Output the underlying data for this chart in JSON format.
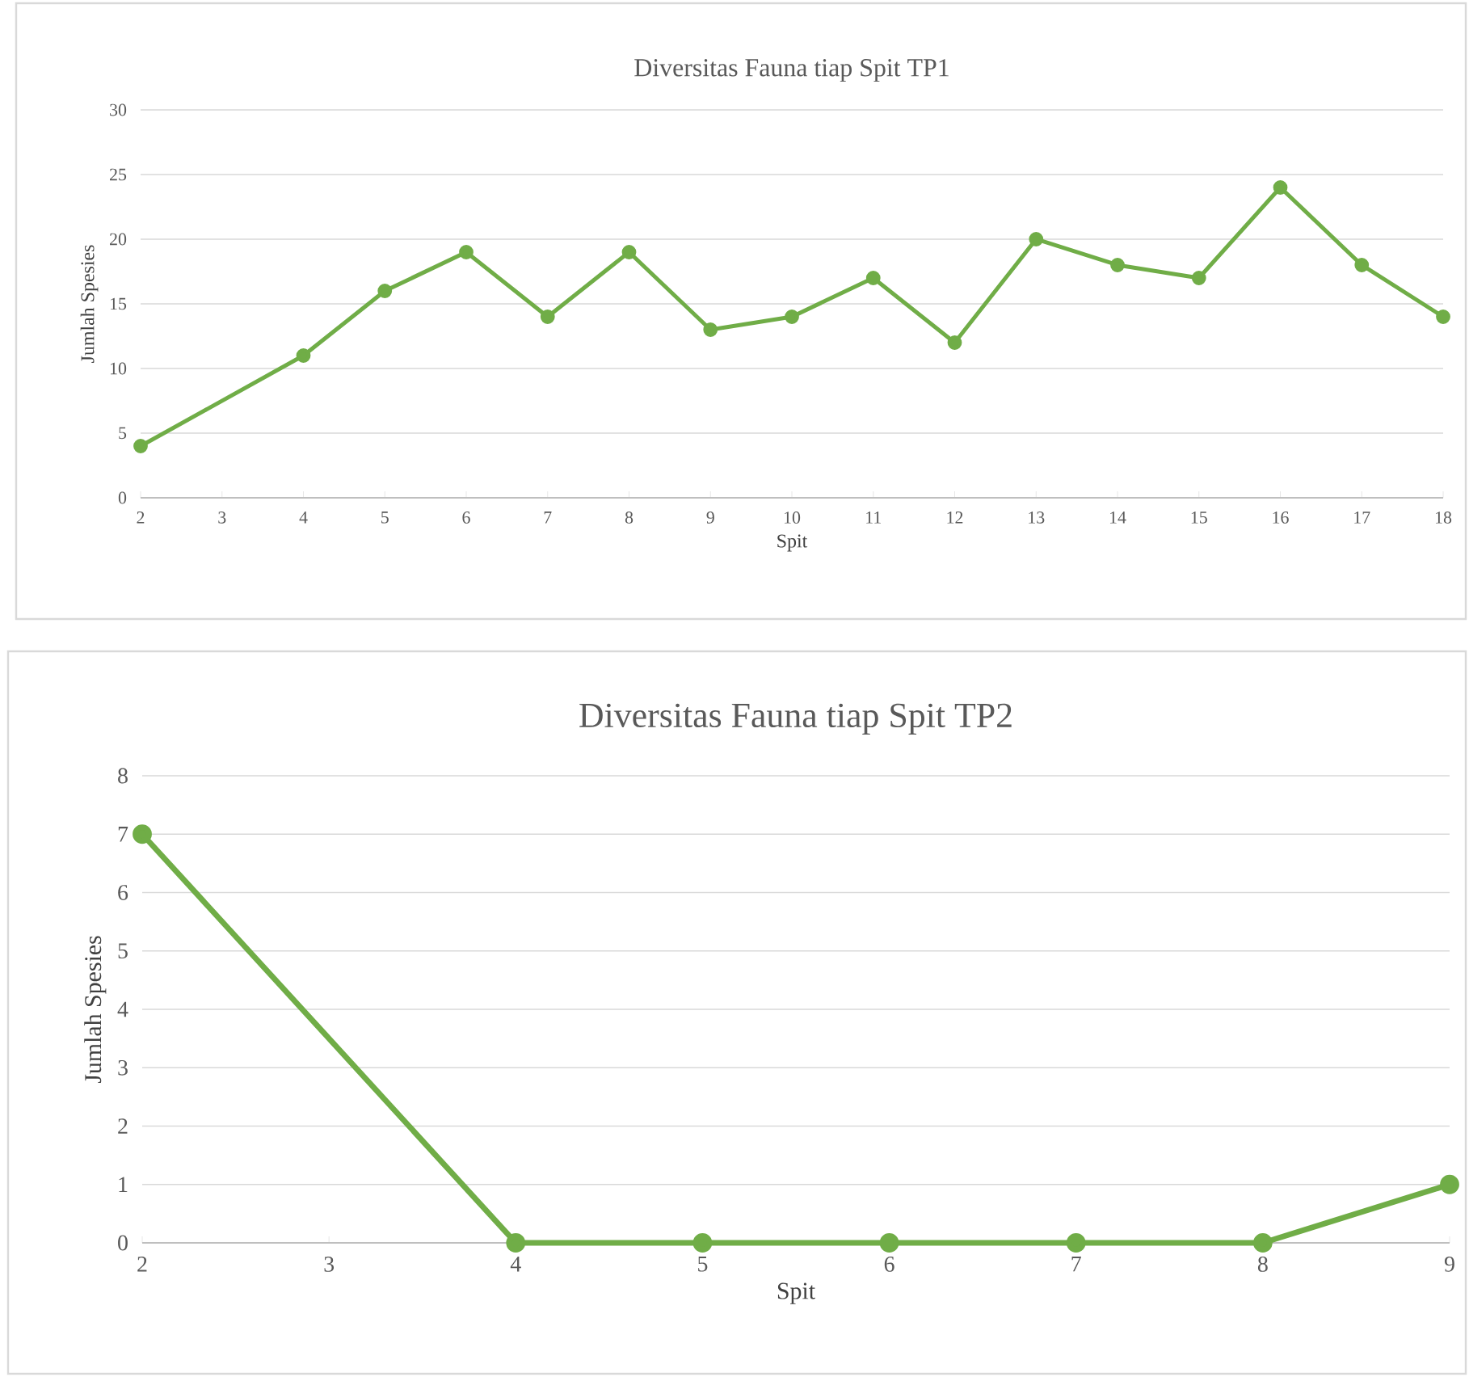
{
  "chart_data": [
    {
      "type": "line",
      "title": "Diversitas Fauna tiap Spit TP1",
      "xlabel": "Spit",
      "ylabel": "Jumlah Spesies",
      "categories": [
        "2",
        "3",
        "4",
        "5",
        "6",
        "7",
        "8",
        "9",
        "10",
        "11",
        "12",
        "13",
        "14",
        "15",
        "16",
        "17",
        "18"
      ],
      "values": [
        4,
        null,
        11,
        16,
        19,
        14,
        19,
        13,
        14,
        17,
        12,
        20,
        18,
        17,
        24,
        18,
        14
      ],
      "color": "#70ad47",
      "marker": "circle",
      "grid": "y",
      "ylim": [
        0,
        30
      ],
      "yticks": [
        0,
        5,
        10,
        15,
        20,
        25,
        30
      ]
    },
    {
      "type": "line",
      "title": "Diversitas Fauna tiap Spit TP2",
      "xlabel": "Spit",
      "ylabel": "Jumlah Spesies",
      "categories": [
        "2",
        "3",
        "4",
        "5",
        "6",
        "7",
        "8",
        "9"
      ],
      "values": [
        7,
        null,
        0,
        0,
        0,
        0,
        0,
        1
      ],
      "color": "#70ad47",
      "marker": "circle",
      "grid": "y",
      "ylim": [
        0,
        8
      ],
      "yticks": [
        0,
        1,
        2,
        3,
        4,
        5,
        6,
        7,
        8
      ]
    }
  ]
}
